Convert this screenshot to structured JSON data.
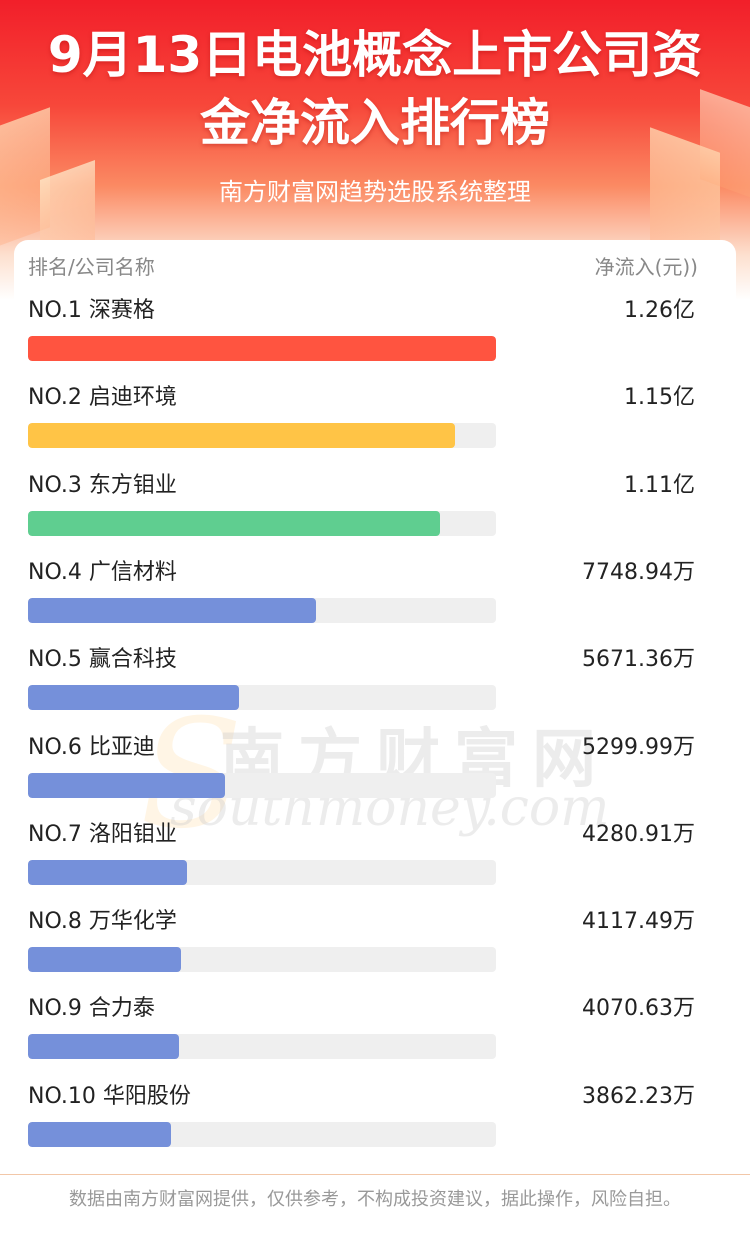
{
  "header": {
    "title_line1": "9月13日电池概念上市公司资",
    "title_line2": "金净流入排行榜",
    "subtitle": "南方财富网趋势选股系统整理"
  },
  "columns": {
    "left": "排名/公司名称",
    "right": "净流入(元))"
  },
  "colors": {
    "rank1": "#ff5440",
    "rank2": "#ffc446",
    "rank3": "#5fce90",
    "others": "#7590da",
    "track": "#efefef"
  },
  "watermark": {
    "cn": "南方财富网",
    "en": "southmoney.com"
  },
  "chart_data": {
    "type": "bar",
    "title": "9月13日电池概念上市公司资金净流入排行榜",
    "unit_note": "净流入(元))",
    "categories": [
      "深赛格",
      "启迪环境",
      "东方钼业",
      "广信材料",
      "赢合科技",
      "比亚迪",
      "洛阳钼业",
      "万华化学",
      "合力泰",
      "华阳股份"
    ],
    "ranks": [
      "NO.1",
      "NO.2",
      "NO.3",
      "NO.4",
      "NO.5",
      "NO.6",
      "NO.7",
      "NO.8",
      "NO.9",
      "NO.10"
    ],
    "value_labels": [
      "1.26亿",
      "1.15亿",
      "1.11亿",
      "7748.94万",
      "5671.36万",
      "5299.99万",
      "4280.91万",
      "4117.49万",
      "4070.63万",
      "3862.23万"
    ],
    "values": [
      126000000,
      115000000,
      111000000,
      77489400,
      56713600,
      52999900,
      42809100,
      41174900,
      40706300,
      38622300
    ],
    "labels": [
      "NO.1 深赛格",
      "NO.2 启迪环境",
      "NO.3 东方钼业",
      "NO.4 广信材料",
      "NO.5 赢合科技",
      "NO.6 比亚迪",
      "NO.7 洛阳钼业",
      "NO.8 万华化学",
      "NO.9 合力泰",
      "NO.10 华阳股份"
    ]
  },
  "footer": {
    "disclaimer": "数据由南方财富网提供，仅供参考，不构成投资建议，据此操作，风险自担。"
  }
}
